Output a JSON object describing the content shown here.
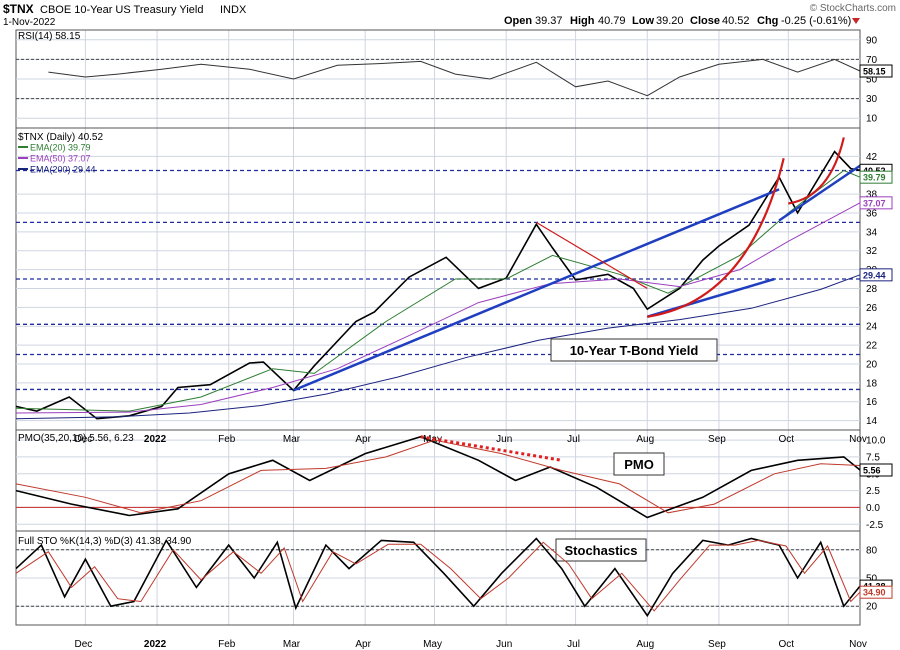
{
  "header": {
    "symbol": "$TNX",
    "name": "CBOE 10-Year US Treasury Yield",
    "exchange": "INDX",
    "date": "1-Nov-2022",
    "open_label": "Open",
    "open": "39.37",
    "high_label": "High",
    "high": "40.79",
    "low_label": "Low",
    "low": "39.20",
    "close_label": "Close",
    "close": "40.52",
    "chg_label": "Chg",
    "chg": "-0.25 (-0.61%)",
    "watermark": "© StockCharts.com"
  },
  "colors": {
    "price": "#000000",
    "ema20": "#2e7d32",
    "ema50": "#9c3fbf",
    "ema200": "#1a237e",
    "trend": "#1f3fc0",
    "accel": "#d11b1b",
    "hline": "#1f2a9e",
    "pmo_signal": "#c0392b",
    "dotted_trend": "#e02020",
    "grid": "#cfd5e0",
    "panel_bg": "#ffffff"
  },
  "chart_data": [
    {
      "type": "line",
      "panel": "rsi",
      "title": "RSI(14) 58.15",
      "indicator": "RSI(14)",
      "last_value": 58.15,
      "ylim": [
        0,
        100
      ],
      "y_ticks": [
        10,
        30,
        50,
        70,
        90
      ],
      "reference_lines": [
        30,
        70
      ],
      "series": [
        {
          "x": [
            "2021-11-15",
            "2021-12-01",
            "2021-12-15",
            "2022-01-03",
            "2022-01-20",
            "2022-02-10",
            "2022-03-01",
            "2022-03-20",
            "2022-04-10",
            "2022-04-25",
            "2022-05-10",
            "2022-05-25",
            "2022-06-14",
            "2022-07-01",
            "2022-07-15",
            "2022-08-01",
            "2022-08-15",
            "2022-09-01",
            "2022-09-20",
            "2022-10-05",
            "2022-10-21",
            "2022-11-01"
          ],
          "values": [
            57,
            52,
            55,
            60,
            65,
            60,
            50,
            64,
            66,
            68,
            55,
            50,
            67,
            42,
            48,
            33,
            52,
            65,
            70,
            57,
            70,
            58.15
          ]
        }
      ]
    },
    {
      "type": "line",
      "panel": "price",
      "title": "$TNX (Daily) 40.52",
      "ylim": [
        13,
        45
      ],
      "y_ticks": [
        14,
        16,
        18,
        20,
        22,
        24,
        26,
        28,
        30,
        32,
        34,
        36,
        38,
        42
      ],
      "x_tick_labels": [
        "Dec",
        "2022",
        "Feb",
        "Mar",
        "Apr",
        "May",
        "Jun",
        "Jul",
        "Aug",
        "Sep",
        "Oct",
        "Nov"
      ],
      "x_ticks": [
        "2021-12-01",
        "2022-01-01",
        "2022-02-01",
        "2022-03-01",
        "2022-04-01",
        "2022-05-01",
        "2022-06-01",
        "2022-07-01",
        "2022-08-01",
        "2022-09-01",
        "2022-10-01",
        "2022-11-01"
      ],
      "series": [
        {
          "name": "$TNX (Daily) 40.52",
          "x": [
            "2021-11-01",
            "2021-11-10",
            "2021-11-24",
            "2021-12-06",
            "2021-12-20",
            "2022-01-03",
            "2022-01-10",
            "2022-01-24",
            "2022-02-10",
            "2022-02-16",
            "2022-03-01",
            "2022-03-10",
            "2022-03-28",
            "2022-04-05",
            "2022-04-20",
            "2022-05-06",
            "2022-05-20",
            "2022-06-01",
            "2022-06-14",
            "2022-06-21",
            "2022-07-01",
            "2022-07-15",
            "2022-07-26",
            "2022-08-01",
            "2022-08-15",
            "2022-08-25",
            "2022-09-01",
            "2022-09-14",
            "2022-09-27",
            "2022-10-05",
            "2022-10-21",
            "2022-10-28",
            "2022-11-01"
          ],
          "values": [
            15.5,
            15.0,
            16.5,
            14.2,
            14.5,
            15.5,
            17.5,
            17.8,
            20.1,
            20.2,
            17.2,
            19.8,
            24.5,
            25.5,
            29.2,
            31.3,
            28.0,
            29.1,
            34.8,
            32.3,
            28.9,
            29.5,
            28.0,
            25.8,
            28.0,
            31.0,
            32.5,
            34.7,
            39.8,
            36.0,
            42.5,
            40.7,
            40.52
          ]
        },
        {
          "name": "EMA(20) 39.79",
          "x": [
            "2021-11-01",
            "2021-12-20",
            "2022-01-20",
            "2022-02-20",
            "2022-03-10",
            "2022-04-10",
            "2022-05-10",
            "2022-06-01",
            "2022-06-21",
            "2022-07-20",
            "2022-08-10",
            "2022-09-10",
            "2022-10-01",
            "2022-10-25",
            "2022-11-01"
          ],
          "values": [
            15.3,
            15.0,
            16.5,
            19.5,
            19.0,
            24.5,
            29.0,
            29.0,
            31.5,
            29.5,
            27.5,
            31.5,
            36.0,
            40.5,
            39.79
          ]
        },
        {
          "name": "EMA(50) 37.07",
          "x": [
            "2021-11-01",
            "2021-12-20",
            "2022-01-20",
            "2022-02-20",
            "2022-03-20",
            "2022-04-20",
            "2022-05-20",
            "2022-06-20",
            "2022-07-20",
            "2022-08-15",
            "2022-09-10",
            "2022-10-01",
            "2022-10-20",
            "2022-11-01"
          ],
          "values": [
            14.8,
            14.9,
            15.7,
            17.5,
            19.5,
            23.0,
            26.5,
            28.5,
            29.0,
            28.2,
            30.0,
            33.0,
            35.5,
            37.07
          ]
        },
        {
          "name": "EMA(200) 29.44",
          "x": [
            "2021-11-01",
            "2021-12-15",
            "2022-01-15",
            "2022-02-15",
            "2022-03-15",
            "2022-04-15",
            "2022-05-15",
            "2022-06-15",
            "2022-07-15",
            "2022-08-15",
            "2022-09-15",
            "2022-10-15",
            "2022-11-01"
          ],
          "values": [
            14.2,
            14.4,
            14.8,
            15.6,
            16.8,
            18.6,
            20.7,
            22.5,
            23.8,
            24.7,
            25.9,
            27.9,
            29.44
          ]
        }
      ],
      "last_value_labels": [
        "40.52",
        "39.79",
        "37.07",
        "29.44"
      ],
      "annotations": [
        {
          "kind": "text_box",
          "text": "10-Year T-Bond Yield"
        },
        {
          "kind": "horizontal_line",
          "y": 40.5
        },
        {
          "kind": "horizontal_line",
          "y": 35.0
        },
        {
          "kind": "horizontal_line",
          "y": 29.0
        },
        {
          "kind": "horizontal_line",
          "y": 24.2
        },
        {
          "kind": "horizontal_line",
          "y": 21.0
        },
        {
          "kind": "horizontal_line",
          "y": 17.3
        },
        {
          "kind": "trendline",
          "color": "trend",
          "from": [
            "2022-03-01",
            17.2
          ],
          "to": [
            "2022-09-27",
            38.5
          ]
        },
        {
          "kind": "trendline",
          "color": "trend",
          "from": [
            "2022-08-01",
            25.0
          ],
          "to": [
            "2022-09-25",
            29.0
          ]
        },
        {
          "kind": "trendline",
          "color": "trend",
          "from": [
            "2022-09-27",
            35.2
          ],
          "to": [
            "2022-11-01",
            41.0
          ]
        },
        {
          "kind": "trendline",
          "color": "accel",
          "from": [
            "2022-06-14",
            35.0
          ],
          "to": [
            "2022-08-01",
            28.0
          ]
        },
        {
          "kind": "curve",
          "color": "accel",
          "from": [
            "2022-08-01",
            25.0
          ],
          "to": [
            "2022-09-29",
            41.8
          ]
        },
        {
          "kind": "curve",
          "color": "accel",
          "from": [
            "2022-10-01",
            37.0
          ],
          "to": [
            "2022-10-25",
            44.0
          ]
        }
      ]
    },
    {
      "type": "line",
      "panel": "pmo",
      "title": "PMO(35,20,10) 5.56, 6.23",
      "ylim": [
        -3.5,
        11.5
      ],
      "y_ticks": [
        -2.5,
        0.0,
        2.5,
        5.0,
        7.5,
        10.0
      ],
      "reference_lines": [
        0
      ],
      "last_value_labels": [
        "5.56"
      ],
      "series": [
        {
          "name": "PMO(35,20,10) 5.56",
          "x": [
            "2021-11-01",
            "2021-11-25",
            "2021-12-20",
            "2022-01-10",
            "2022-02-01",
            "2022-02-20",
            "2022-03-08",
            "2022-04-01",
            "2022-04-25",
            "2022-05-20",
            "2022-06-05",
            "2022-06-20",
            "2022-07-10",
            "2022-08-01",
            "2022-08-25",
            "2022-09-15",
            "2022-10-05",
            "2022-10-25",
            "2022-11-01"
          ],
          "values": [
            2.5,
            0.5,
            -1.2,
            -0.2,
            5.0,
            7.0,
            4.0,
            8.0,
            10.5,
            7.0,
            4.0,
            6.0,
            3.0,
            -1.5,
            1.5,
            5.5,
            7.0,
            7.5,
            5.56
          ]
        },
        {
          "name": "6.23",
          "x": [
            "2021-11-01",
            "2021-12-01",
            "2021-12-25",
            "2022-01-20",
            "2022-02-15",
            "2022-03-15",
            "2022-04-10",
            "2022-05-01",
            "2022-05-30",
            "2022-06-25",
            "2022-07-20",
            "2022-08-10",
            "2022-08-30",
            "2022-09-25",
            "2022-10-15",
            "2022-11-01"
          ],
          "values": [
            3.5,
            1.5,
            -0.8,
            1.0,
            5.5,
            5.8,
            7.5,
            10.0,
            8.0,
            5.5,
            3.5,
            -0.8,
            0.5,
            5.0,
            6.5,
            6.23
          ]
        }
      ],
      "annotations": [
        {
          "kind": "text_box",
          "text": "PMO"
        },
        {
          "kind": "dotted_trendline",
          "from": [
            "2022-04-25",
            10.5
          ],
          "to": [
            "2022-06-25",
            7.0
          ]
        }
      ]
    },
    {
      "type": "line",
      "panel": "stochastics",
      "title": "Full STO %K(14,3) %D(3) 41.38, 34.90",
      "ylim": [
        0,
        100
      ],
      "y_ticks": [
        20,
        50,
        80
      ],
      "reference_lines": [
        20,
        80
      ],
      "last_value_labels": [
        "41.38",
        "34.90"
      ],
      "series": [
        {
          "name": "%K(14,3) 41.38",
          "x": [
            "2021-11-01",
            "2021-11-12",
            "2021-11-22",
            "2021-12-01",
            "2021-12-12",
            "2021-12-22",
            "2022-01-05",
            "2022-01-18",
            "2022-02-01",
            "2022-02-12",
            "2022-02-22",
            "2022-03-02",
            "2022-03-15",
            "2022-03-25",
            "2022-04-08",
            "2022-04-22",
            "2022-05-05",
            "2022-05-18",
            "2022-05-30",
            "2022-06-14",
            "2022-06-25",
            "2022-07-05",
            "2022-07-18",
            "2022-08-01",
            "2022-08-12",
            "2022-08-25",
            "2022-09-05",
            "2022-09-15",
            "2022-09-27",
            "2022-10-05",
            "2022-10-15",
            "2022-10-25",
            "2022-11-01"
          ],
          "values": [
            60,
            85,
            30,
            70,
            20,
            25,
            90,
            40,
            85,
            50,
            88,
            18,
            85,
            60,
            90,
            88,
            55,
            20,
            55,
            92,
            60,
            20,
            60,
            10,
            55,
            90,
            85,
            92,
            85,
            50,
            88,
            20,
            41.38
          ]
        },
        {
          "name": "%D(3) 34.90",
          "x": [
            "2021-11-01",
            "2021-11-15",
            "2021-11-25",
            "2021-12-05",
            "2021-12-15",
            "2021-12-25",
            "2022-01-08",
            "2022-01-20",
            "2022-02-03",
            "2022-02-15",
            "2022-02-25",
            "2022-03-05",
            "2022-03-18",
            "2022-03-28",
            "2022-04-11",
            "2022-04-25",
            "2022-05-08",
            "2022-05-21",
            "2022-06-02",
            "2022-06-17",
            "2022-06-28",
            "2022-07-08",
            "2022-07-21",
            "2022-08-04",
            "2022-08-15",
            "2022-08-28",
            "2022-09-08",
            "2022-09-18",
            "2022-09-30",
            "2022-10-08",
            "2022-10-18",
            "2022-10-28",
            "2022-11-01"
          ],
          "values": [
            55,
            78,
            40,
            62,
            28,
            25,
            80,
            48,
            78,
            55,
            82,
            25,
            78,
            65,
            86,
            86,
            60,
            28,
            50,
            88,
            65,
            28,
            55,
            15,
            48,
            85,
            85,
            90,
            84,
            55,
            84,
            25,
            34.9
          ]
        }
      ],
      "annotations": [
        {
          "kind": "text_box",
          "text": "Stochastics"
        }
      ]
    }
  ]
}
